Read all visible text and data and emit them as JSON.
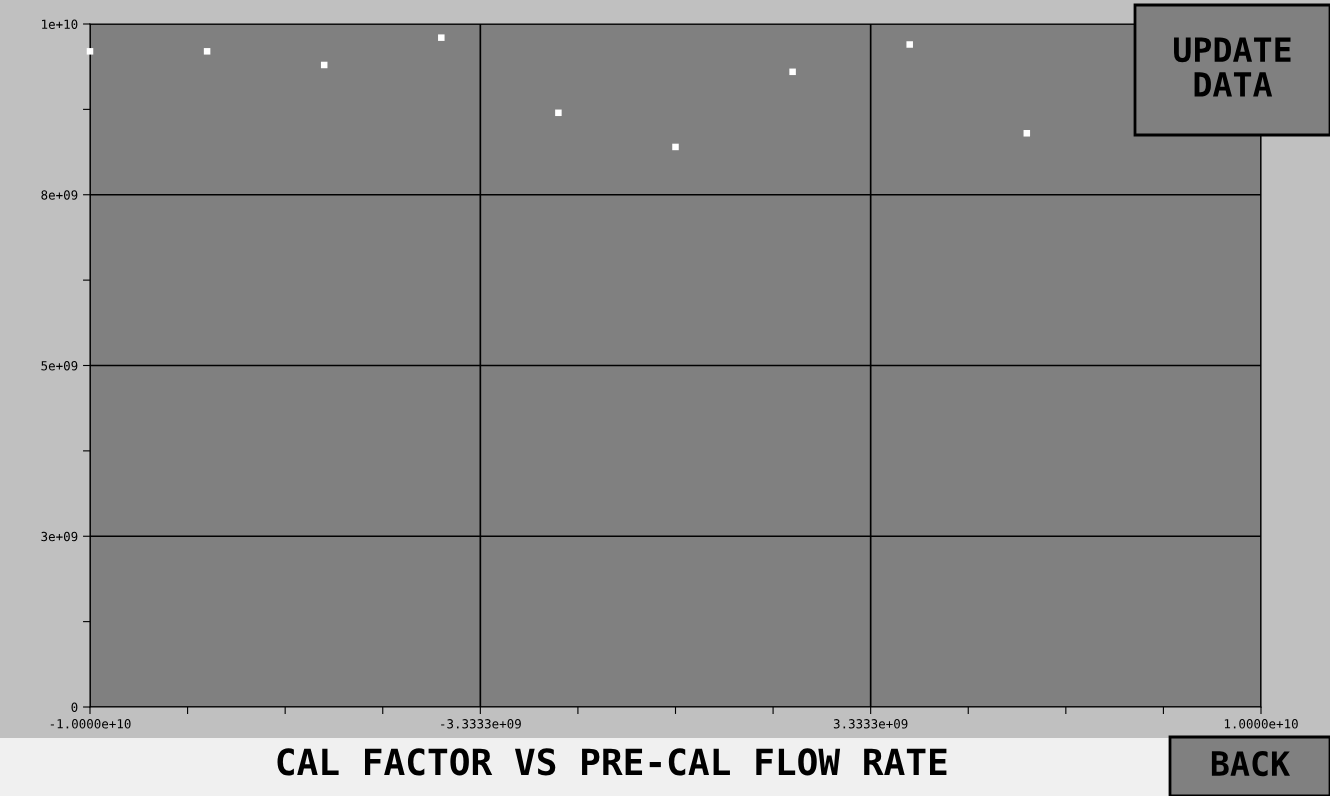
{
  "chart_data": {
    "type": "scatter",
    "title": "CAL FACTOR VS PRE-CAL FLOW RATE",
    "x": [
      -10000000000.0,
      -8000000000.0,
      -6000000000.0,
      -4000000000.0,
      -2000000000.0,
      0,
      2000000000.0,
      4000000000.0,
      6000000000.0
    ],
    "series": [
      {
        "color": "#ffffff",
        "values": [
          9600000000.0,
          9600000000.0,
          9400000000.0,
          9800000000.0,
          8700000000.0,
          8200000000.0,
          9300000000.0,
          9700000000.0,
          8400000000.0
        ]
      }
    ],
    "marker": "square",
    "xlim": [
      -10000000000.0,
      10000000000.0
    ],
    "xticks": [
      {
        "value": -10000000000.0,
        "label": "-1.0000e+10"
      },
      {
        "value": -8333300000.0,
        "label": null
      },
      {
        "value": -6666700000.0,
        "label": null
      },
      {
        "value": -5000000000.0,
        "label": null
      },
      {
        "value": -3333300000.0,
        "label": "-3.3333e+09"
      },
      {
        "value": -1666700000.0,
        "label": null
      },
      {
        "value": 0,
        "label": null
      },
      {
        "value": 1666700000.0,
        "label": null
      },
      {
        "value": 3333300000.0,
        "label": "3.3333e+09"
      },
      {
        "value": 5000000000.0,
        "label": null
      },
      {
        "value": 6666700000.0,
        "label": null
      },
      {
        "value": 8333300000.0,
        "label": null
      },
      {
        "value": 10000000000.0,
        "label": "1.0000e+10"
      }
    ],
    "ylim": [
      0,
      10000000000.0
    ],
    "yticks": [
      0,
      {
        "value": 1250000000.0,
        "label": null
      },
      {
        "value": 2500000000.0,
        "label": "3e+09"
      },
      {
        "value": 3750000000.0,
        "label": null
      },
      {
        "value": 5000000000.0,
        "label": "5e+09"
      },
      {
        "value": 6250000000.0,
        "label": null
      },
      {
        "value": 7500000000.0,
        "label": "8e+09"
      },
      {
        "value": 8750000000.0,
        "label": null
      },
      {
        "value": 10000000000.0,
        "label": "1e+10"
      }
    ],
    "grid": true,
    "annotations": [
      "UPDATE\nDATA",
      "BACK"
    ]
  }
}
